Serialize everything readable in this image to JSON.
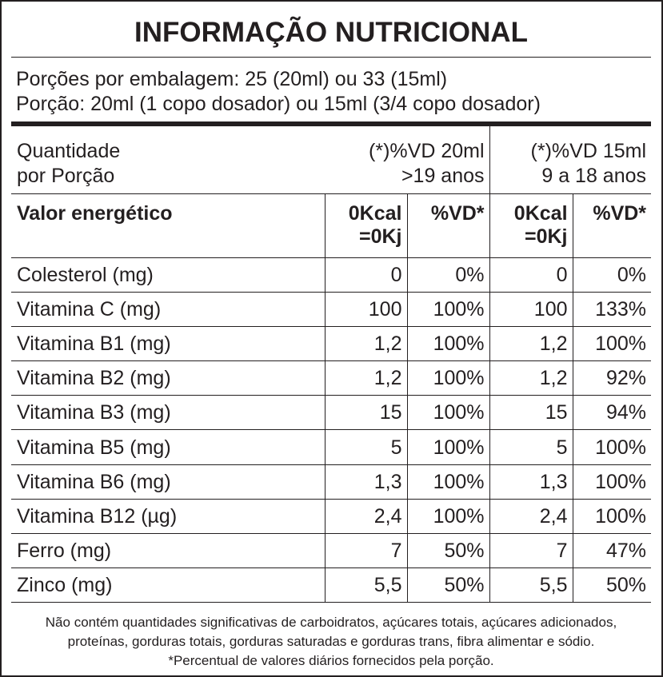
{
  "title": "INFORMAÇÃO NUTRICIONAL",
  "portions": [
    "Porções por embalagem: 25 (20ml) ou 33 (15ml)",
    "Porção: 20ml (1 copo dosador) ou 15ml (3/4 copo dosador)"
  ],
  "table": {
    "header": {
      "quantity": [
        "Quantidade",
        "por Porção"
      ],
      "vd20": [
        "(*)%VD 20ml",
        ">19 anos"
      ],
      "vd15": [
        "(*)%VD 15ml",
        "9 a 18 anos"
      ]
    },
    "energy": {
      "label": "Valor energético",
      "amount20": [
        "0Kcal",
        "=0Kj"
      ],
      "vd20": "%VD*",
      "amount15": [
        "0Kcal",
        "=0Kj"
      ],
      "vd15": "%VD*"
    },
    "rows": [
      [
        "Colesterol (mg)",
        "0",
        "0%",
        "0",
        "0%"
      ],
      [
        "Vitamina C (mg)",
        "100",
        "100%",
        "100",
        "133%"
      ],
      [
        "Vitamina B1 (mg)",
        "1,2",
        "100%",
        "1,2",
        "100%"
      ],
      [
        "Vitamina B2 (mg)",
        "1,2",
        "100%",
        "1,2",
        "92%"
      ],
      [
        "Vitamina B3 (mg)",
        "15",
        "100%",
        "15",
        "94%"
      ],
      [
        "Vitamina B5 (mg)",
        "5",
        "100%",
        "5",
        "100%"
      ],
      [
        "Vitamina B6 (mg)",
        "1,3",
        "100%",
        "1,3",
        "100%"
      ],
      [
        "Vitamina B12 (µg)",
        "2,4",
        "100%",
        "2,4",
        "100%"
      ],
      [
        "Ferro (mg)",
        "7",
        "50%",
        "7",
        "47%"
      ],
      [
        "Zinco (mg)",
        "5,5",
        "50%",
        "5,5",
        "50%"
      ]
    ]
  },
  "footnote": "Não contém quantidades significativas de carboidratos, açúcares totais, açúcares adicionados, proteínas, gorduras totais, gorduras saturadas e gorduras trans, fibra alimentar e sódio. *Percentual de valores diários fornecidos pela porção."
}
